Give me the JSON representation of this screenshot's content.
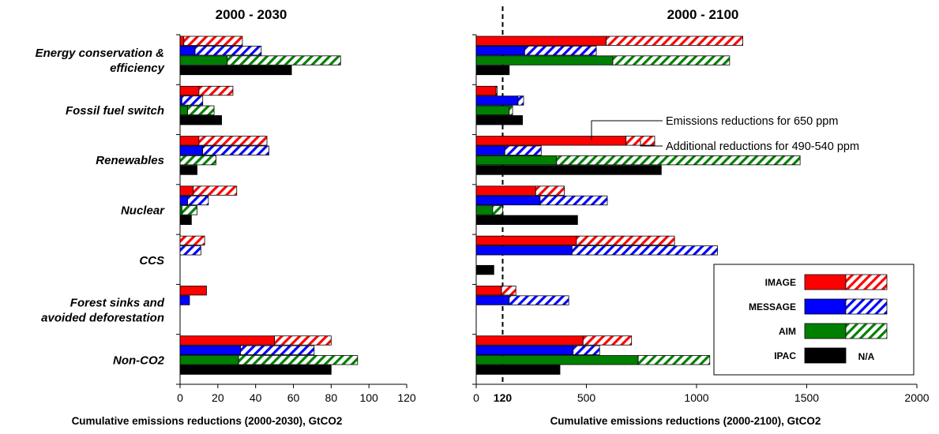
{
  "chart_data": [
    {
      "type": "bar",
      "orientation": "horizontal",
      "stacked": true,
      "title": "2000 - 2030",
      "xlabel": "Cumulative emissions reductions (2000-2030), GtCO2",
      "xlim": [
        0,
        120
      ],
      "xticks": [
        0,
        20,
        40,
        60,
        80,
        100,
        120
      ],
      "categories": [
        "Energy conservation & efficiency",
        "Fossil fuel switch",
        "Renewables",
        "Nuclear",
        "CCS",
        "Forest sinks and avoided deforestation",
        "Non-CO2"
      ],
      "category_label_lines": [
        [
          "Energy conservation &",
          "efficiency"
        ],
        [
          "Fossil fuel switch"
        ],
        [
          "Renewables"
        ],
        [
          "Nuclear"
        ],
        [
          "CCS"
        ],
        [
          "Forest sinks and",
          "avoided deforestation"
        ],
        [
          "Non-CO2"
        ]
      ],
      "series": [
        {
          "name": "IMAGE",
          "base": [
            2,
            10,
            10,
            7,
            0,
            14,
            50
          ],
          "total": [
            33,
            28,
            46,
            30,
            13,
            14,
            80
          ]
        },
        {
          "name": "MESSAGE",
          "base": [
            8,
            1,
            12,
            4,
            0,
            5,
            32
          ],
          "total": [
            43,
            12,
            47,
            15,
            11,
            5,
            71
          ]
        },
        {
          "name": "AIM",
          "base": [
            25,
            4,
            0,
            1,
            0,
            0,
            31
          ],
          "total": [
            85,
            18,
            19,
            9,
            0,
            0,
            94
          ]
        },
        {
          "name": "IPAC",
          "base": [
            59,
            22,
            9,
            6,
            0,
            0,
            80
          ],
          "total": [
            59,
            22,
            9,
            6,
            0,
            0,
            80
          ]
        }
      ]
    },
    {
      "type": "bar",
      "orientation": "horizontal",
      "stacked": true,
      "title": "2000 - 2100",
      "xlabel": "Cumulative emissions reductions (2000-2100), GtCO2",
      "xlim": [
        0,
        2000
      ],
      "xticks": [
        0,
        500,
        1000,
        1500,
        2000
      ],
      "reference_line": {
        "x": 120,
        "label": "120",
        "style": "dashed"
      },
      "categories": [
        "Energy conservation & efficiency",
        "Fossil fuel switch",
        "Renewables",
        "Nuclear",
        "CCS",
        "Forest sinks and avoided deforestation",
        "Non-CO2"
      ],
      "series": [
        {
          "name": "IMAGE",
          "base": [
            590,
            90,
            680,
            270,
            455,
            115,
            485
          ],
          "total": [
            1210,
            95,
            810,
            400,
            900,
            180,
            705
          ]
        },
        {
          "name": "MESSAGE",
          "base": [
            220,
            190,
            130,
            290,
            435,
            150,
            440
          ],
          "total": [
            545,
            215,
            295,
            595,
            1095,
            420,
            560
          ]
        },
        {
          "name": "AIM",
          "base": [
            620,
            150,
            365,
            75,
            0,
            0,
            735
          ],
          "total": [
            1150,
            165,
            1470,
            120,
            0,
            0,
            1060
          ]
        },
        {
          "name": "IPAC",
          "base": [
            150,
            210,
            840,
            460,
            80,
            0,
            380
          ],
          "total": [
            150,
            210,
            840,
            460,
            80,
            0,
            380
          ]
        }
      ],
      "annotations": [
        {
          "text": "Emissions reductions for 650 ppm",
          "target": "IMAGE solid bar (Renewables)"
        },
        {
          "text": "Additional reductions for 490-540 ppm",
          "target": "IMAGE hatched bar (Renewables)"
        }
      ]
    }
  ],
  "legend": {
    "placement": "bottom-right",
    "entries": [
      {
        "name": "IMAGE",
        "color": "#ff0000",
        "hatched": true
      },
      {
        "name": "MESSAGE",
        "color": "#0000ff",
        "hatched": true
      },
      {
        "name": "AIM",
        "color": "#008000",
        "hatched": true
      },
      {
        "name": "IPAC",
        "color": "#000000",
        "hatched": false,
        "note": "N/A"
      }
    ]
  }
}
